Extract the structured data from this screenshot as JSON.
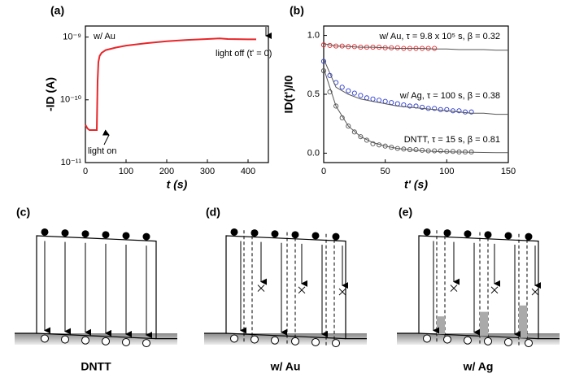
{
  "chart_data": [
    {
      "type": "line",
      "panel": "(a)",
      "xlabel": "t (s)",
      "ylabel": "-ID (A)",
      "log_y": true,
      "xlim": [
        0,
        450
      ],
      "xticks": [
        0,
        100,
        200,
        300,
        400
      ],
      "ylim": [
        1e-11,
        1.5e-09
      ],
      "yticks": [
        {
          "value": 1e-11,
          "label": "10⁻¹¹"
        },
        {
          "value": 1e-10,
          "label": "10⁻¹⁰"
        },
        {
          "value": 1e-09,
          "label": "10⁻⁹"
        }
      ],
      "color": "#e8262a",
      "x": [
        0,
        5,
        10,
        20,
        28,
        30,
        32,
        35,
        40,
        50,
        75,
        100,
        150,
        200,
        250,
        300,
        330,
        350,
        400,
        420
      ],
      "values": [
        4e-11,
        3.5e-11,
        3.3e-11,
        3.3e-11,
        3.3e-11,
        2e-10,
        4e-10,
        5e-10,
        5.6e-10,
        6.2e-10,
        6.8e-10,
        7.3e-10,
        8e-10,
        8.6e-10,
        9e-10,
        9.3e-10,
        9.5e-10,
        9.3e-10,
        9.2e-10,
        9.2e-10
      ],
      "annotations": [
        "w/ Au",
        "light on",
        "light off (t' = 0)"
      ]
    },
    {
      "type": "scatter",
      "panel": "(b)",
      "xlabel": "t' (s)",
      "ylabel": "ID(t')/I0",
      "xlim": [
        0,
        150
      ],
      "xticks": [
        0,
        50,
        100,
        150
      ],
      "ylim": [
        -0.08,
        1.08
      ],
      "yticks": [
        {
          "value": 0,
          "label": "0.0"
        },
        {
          "value": 0.5,
          "label": "0.5"
        },
        {
          "value": 1,
          "label": "1.0"
        }
      ],
      "fit_color": "#555555",
      "fit_x": [
        0,
        10,
        20,
        30,
        40,
        50,
        60,
        70,
        80,
        90,
        100,
        110,
        120,
        130,
        140,
        150
      ],
      "series": [
        {
          "name": "w/ Au, τ = 9.8 x 10⁵ s, β = 0.32",
          "color": "#e8262a",
          "x": [
            0,
            5,
            10,
            15,
            20,
            25,
            30,
            35,
            40,
            45,
            50,
            55,
            60,
            65,
            70,
            75,
            80,
            85,
            90
          ],
          "values": [
            0.92,
            0.915,
            0.91,
            0.91,
            0.905,
            0.905,
            0.9,
            0.9,
            0.9,
            0.9,
            0.895,
            0.895,
            0.895,
            0.89,
            0.89,
            0.89,
            0.89,
            0.89,
            0.89
          ],
          "fit": [
            0.93,
            0.91,
            0.905,
            0.9,
            0.9,
            0.895,
            0.89,
            0.89,
            0.89,
            0.885,
            0.885,
            0.88,
            0.88,
            0.88,
            0.875,
            0.875
          ]
        },
        {
          "name": "w/ Ag, τ = 100 s, β = 0.38",
          "color": "#2b3bd1",
          "x": [
            0,
            5,
            10,
            15,
            20,
            25,
            30,
            35,
            40,
            45,
            50,
            55,
            60,
            65,
            70,
            75,
            80,
            85,
            90,
            95,
            100,
            105,
            110,
            115,
            120
          ],
          "values": [
            0.78,
            0.66,
            0.6,
            0.56,
            0.53,
            0.51,
            0.49,
            0.47,
            0.46,
            0.45,
            0.44,
            0.43,
            0.42,
            0.41,
            0.4,
            0.4,
            0.39,
            0.38,
            0.38,
            0.37,
            0.37,
            0.36,
            0.36,
            0.35,
            0.35
          ],
          "fit": [
            0.8,
            0.56,
            0.5,
            0.46,
            0.44,
            0.42,
            0.4,
            0.39,
            0.38,
            0.37,
            0.36,
            0.35,
            0.34,
            0.34,
            0.33,
            0.33
          ]
        },
        {
          "name": "DNTT, τ = 15 s, β = 0.81",
          "color": "#555555",
          "x": [
            0,
            5,
            10,
            15,
            20,
            25,
            30,
            35,
            40,
            45,
            50,
            55,
            60,
            65,
            70,
            75,
            80,
            85,
            90,
            95,
            100,
            105,
            110,
            115,
            120
          ],
          "values": [
            0.7,
            0.52,
            0.4,
            0.3,
            0.23,
            0.18,
            0.14,
            0.11,
            0.08,
            0.07,
            0.06,
            0.05,
            0.04,
            0.035,
            0.03,
            0.03,
            0.025,
            0.02,
            0.02,
            0.02,
            0.015,
            0.015,
            0.01,
            0.01,
            0.01
          ],
          "fit": [
            0.72,
            0.4,
            0.23,
            0.14,
            0.09,
            0.06,
            0.04,
            0.03,
            0.02,
            0.015,
            0.012,
            0.01,
            0.008,
            0.006,
            0.005,
            0.004
          ]
        }
      ]
    }
  ],
  "diagrams": [
    {
      "panel": "(c)",
      "label": "DNTT"
    },
    {
      "panel": "(d)",
      "label": "w/ Au"
    },
    {
      "panel": "(e)",
      "label": "w/ Ag"
    }
  ]
}
